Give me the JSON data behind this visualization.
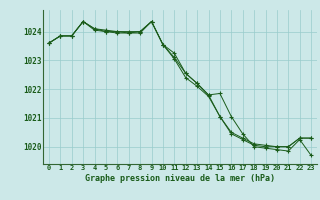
{
  "title": "Graphe pression niveau de la mer (hPa)",
  "background_color": "#cce8e8",
  "grid_color": "#99cccc",
  "line_color": "#1a5c1a",
  "axis_color": "#336633",
  "series1": {
    "x": [
      0,
      1,
      2,
      3,
      4,
      5,
      6,
      7,
      8,
      9,
      10,
      11,
      12,
      13,
      14,
      15,
      16,
      17,
      18,
      19,
      20,
      21,
      22,
      23
    ],
    "y": [
      1023.6,
      1023.85,
      1023.85,
      1024.35,
      1024.05,
      1024.0,
      1023.95,
      1023.95,
      1023.95,
      1024.35,
      1023.55,
      1023.25,
      1022.55,
      1022.2,
      1021.8,
      1021.85,
      1021.05,
      1020.45,
      1020.0,
      1019.95,
      1019.9,
      1019.85,
      1020.25,
      1019.7
    ]
  },
  "series2": {
    "x": [
      0,
      1,
      2,
      3,
      4,
      5,
      6,
      7,
      8,
      9,
      10,
      11,
      12,
      13,
      14,
      15,
      16,
      17,
      18,
      19,
      20,
      21,
      22,
      23
    ],
    "y": [
      1023.6,
      1023.85,
      1023.85,
      1024.35,
      1024.1,
      1024.0,
      1024.0,
      1023.95,
      1024.0,
      1024.35,
      1023.55,
      1023.05,
      1022.4,
      1022.1,
      1021.75,
      1021.05,
      1020.45,
      1020.25,
      1020.05,
      1020.0,
      1020.0,
      1020.0,
      1020.3,
      1020.3
    ]
  },
  "series3": {
    "x": [
      0,
      1,
      2,
      3,
      4,
      5,
      6,
      7,
      8,
      9,
      10,
      11,
      12,
      13,
      14,
      15,
      16,
      17,
      18,
      19,
      20,
      21,
      22,
      23
    ],
    "y": [
      1023.6,
      1023.85,
      1023.85,
      1024.35,
      1024.1,
      1024.05,
      1024.0,
      1024.0,
      1024.0,
      1024.35,
      1023.55,
      1023.1,
      1022.55,
      1022.2,
      1021.8,
      1021.05,
      1020.5,
      1020.3,
      1020.1,
      1020.05,
      1020.0,
      1020.0,
      1020.3,
      1020.3
    ]
  },
  "ylim": [
    1019.4,
    1024.75
  ],
  "yticks": [
    1020,
    1021,
    1022,
    1023,
    1024
  ],
  "xlim": [
    -0.5,
    23.5
  ],
  "xticks": [
    0,
    1,
    2,
    3,
    4,
    5,
    6,
    7,
    8,
    9,
    10,
    11,
    12,
    13,
    14,
    15,
    16,
    17,
    18,
    19,
    20,
    21,
    22,
    23
  ]
}
